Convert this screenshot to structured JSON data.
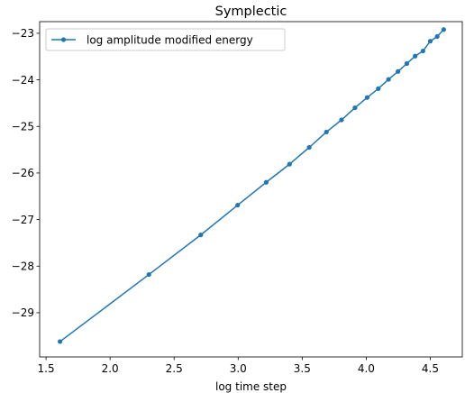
{
  "chart_data": {
    "type": "line",
    "title": "Symplectic",
    "xlabel": "log time step",
    "ylabel": "",
    "xlim": [
      1.45,
      4.75
    ],
    "ylim": [
      -29.95,
      -22.75
    ],
    "xticks": [
      1.5,
      2.0,
      2.5,
      3.0,
      3.5,
      4.0,
      4.5
    ],
    "xtick_labels": [
      "1.5",
      "2.0",
      "2.5",
      "3.0",
      "3.5",
      "4.0",
      "4.5"
    ],
    "yticks": [
      -29,
      -28,
      -27,
      -26,
      -25,
      -24,
      -23
    ],
    "ytick_labels": [
      "−29",
      "−28",
      "−27",
      "−26",
      "−25",
      "−24",
      "−23"
    ],
    "grid": false,
    "legend_position": "top-left",
    "series": [
      {
        "name": "log amplitude modified energy",
        "color": "#1f77b4",
        "marker": "circle",
        "x": [
          1.609,
          2.303,
          2.708,
          2.996,
          3.219,
          3.401,
          3.555,
          3.689,
          3.807,
          3.912,
          4.007,
          4.094,
          4.174,
          4.248,
          4.317,
          4.382,
          4.443,
          4.5,
          4.554,
          4.605
        ],
        "y": [
          -29.62,
          -28.18,
          -27.33,
          -26.69,
          -26.2,
          -25.81,
          -25.45,
          -25.12,
          -24.86,
          -24.6,
          -24.38,
          -24.19,
          -23.99,
          -23.82,
          -23.65,
          -23.49,
          -23.38,
          -23.17,
          -23.07,
          -22.92
        ]
      }
    ]
  }
}
